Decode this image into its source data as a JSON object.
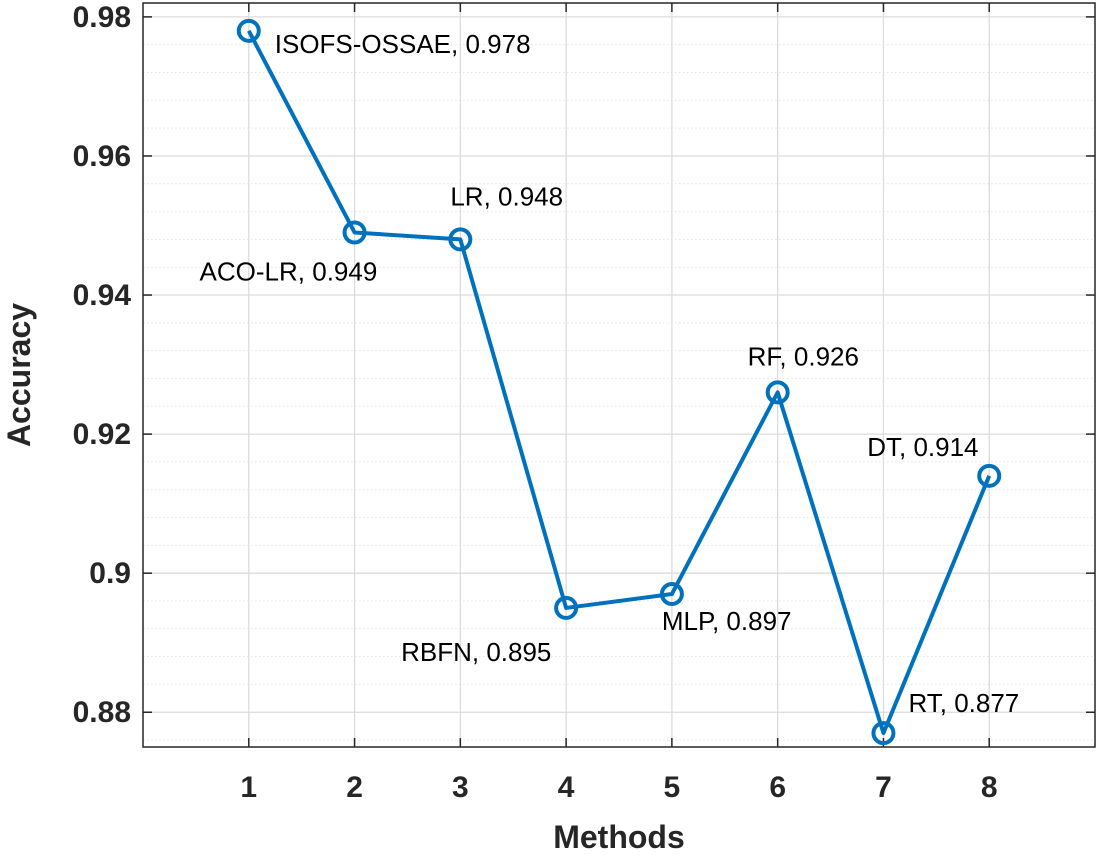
{
  "chart_data": {
    "type": "line",
    "xlabel": "Methods",
    "ylabel": "Accuracy",
    "xlim": [
      0,
      9
    ],
    "ylim": [
      0.875,
      0.982
    ],
    "x_ticks": [
      1,
      2,
      3,
      4,
      5,
      6,
      7,
      8
    ],
    "x_tick_labels": [
      "1",
      "2",
      "3",
      "4",
      "5",
      "6",
      "7",
      "8"
    ],
    "y_ticks": [
      0.88,
      0.9,
      0.92,
      0.94,
      0.96,
      0.98
    ],
    "y_tick_labels": [
      "0.88",
      "0.9",
      "0.92",
      "0.94",
      "0.96",
      "0.98"
    ],
    "grid": true,
    "minor_grid": true,
    "marker": "circle",
    "series": [
      {
        "color": "#0072BD",
        "x": [
          1,
          2,
          3,
          4,
          5,
          6,
          7,
          8
        ],
        "values": [
          0.978,
          0.949,
          0.948,
          0.895,
          0.897,
          0.926,
          0.877,
          0.914
        ]
      }
    ],
    "annotations": [
      "ISOFS-OSSAE, 0.978",
      "ACO-LR, 0.949",
      "LR, 0.948",
      "RBFN, 0.895",
      "MLP, 0.897",
      "RF, 0.926",
      "RT, 0.877",
      "DT, 0.914"
    ]
  }
}
